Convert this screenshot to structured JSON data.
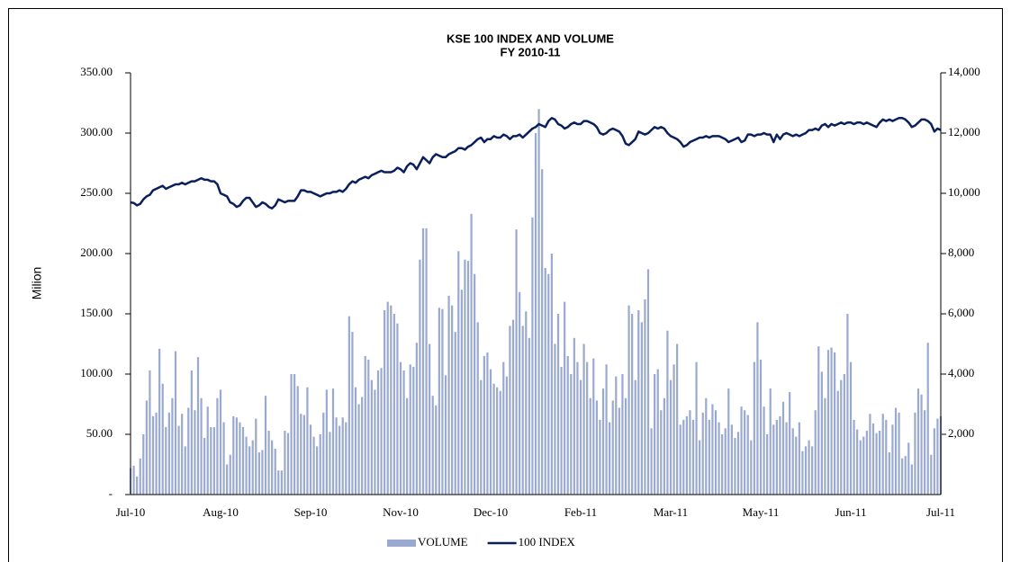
{
  "chart_data": {
    "type": "combo",
    "title": "KSE 100 INDEX AND VOLUME",
    "subtitle": "FY 2010-11",
    "y_label": "Milion",
    "categories": [
      "Jul-10",
      null,
      null,
      null,
      null,
      null,
      null,
      null,
      null,
      null,
      null,
      null,
      null,
      null,
      null,
      null,
      null,
      null,
      null,
      null,
      null,
      null,
      null,
      null,
      null,
      null,
      null,
      null,
      "Aug-10",
      null,
      null,
      null,
      null,
      null,
      null,
      null,
      null,
      null,
      null,
      null,
      null,
      null,
      null,
      null,
      null,
      null,
      null,
      null,
      null,
      null,
      null,
      null,
      null,
      null,
      null,
      null,
      "Sep-10",
      null,
      null,
      null,
      null,
      null,
      null,
      null,
      null,
      null,
      null,
      null,
      null,
      null,
      null,
      null,
      null,
      null,
      null,
      null,
      null,
      null,
      null,
      null,
      null,
      null,
      null,
      null,
      "Nov-10",
      null,
      null,
      null,
      null,
      null,
      null,
      null,
      null,
      null,
      null,
      null,
      null,
      null,
      null,
      null,
      null,
      null,
      null,
      null,
      null,
      null,
      null,
      null,
      null,
      null,
      null,
      null,
      "Dec-10",
      null,
      null,
      null,
      null,
      null,
      null,
      null,
      null,
      null,
      null,
      null,
      null,
      null,
      null,
      null,
      null,
      null,
      null,
      null,
      null,
      null,
      null,
      null,
      null,
      null,
      null,
      null,
      "Feb-11",
      null,
      null,
      null,
      null,
      null,
      null,
      null,
      null,
      null,
      null,
      null,
      null,
      null,
      null,
      null,
      null,
      null,
      null,
      null,
      null,
      null,
      null,
      null,
      null,
      null,
      null,
      null,
      "Mar-11",
      null,
      null,
      null,
      null,
      null,
      null,
      null,
      null,
      null,
      null,
      null,
      null,
      null,
      null,
      null,
      null,
      null,
      null,
      null,
      null,
      null,
      null,
      null,
      null,
      null,
      null,
      null,
      "May-11",
      null,
      null,
      null,
      null,
      null,
      null,
      null,
      null,
      null,
      null,
      null,
      null,
      null,
      null,
      null,
      null,
      null,
      null,
      null,
      null,
      null,
      null,
      null,
      null,
      null,
      null,
      null,
      "Jun-11",
      null,
      null,
      null,
      null,
      null,
      null,
      null,
      null,
      null,
      null,
      null,
      null,
      null,
      null,
      null,
      null,
      null,
      null,
      null,
      null,
      null,
      null,
      null,
      null,
      null,
      null,
      null,
      "Jul-11"
    ],
    "series": [
      {
        "name": "VOLUME",
        "type": "bar",
        "color": "#9aa9cf",
        "values": [
          22,
          24,
          15,
          30,
          50,
          78,
          103,
          65,
          68,
          121,
          92,
          56,
          68,
          80,
          119,
          57,
          67,
          40,
          72,
          103,
          70,
          114,
          80,
          47,
          73,
          56,
          56,
          80,
          87,
          60,
          25,
          33,
          65,
          64,
          60,
          56,
          48,
          40,
          45,
          63,
          35,
          37,
          82,
          53,
          45,
          38,
          20,
          20,
          53,
          51,
          100,
          100,
          90,
          67,
          66,
          89,
          58,
          48,
          40,
          50,
          68,
          87,
          52,
          88,
          64,
          57,
          64,
          60,
          148,
          135,
          89,
          75,
          81,
          115,
          112,
          95,
          87,
          103,
          105,
          153,
          160,
          157,
          150,
          142,
          110,
          103,
          80,
          108,
          106,
          126,
          195,
          221,
          221,
          125,
          82,
          74,
          155,
          154,
          99,
          165,
          157,
          135,
          202,
          170,
          195,
          194,
          233,
          183,
          143,
          95,
          115,
          118,
          104,
          92,
          89,
          86,
          110,
          98,
          140,
          145,
          220,
          168,
          140,
          152,
          130,
          230,
          300,
          320,
          270,
          188,
          183,
          200,
          125,
          150,
          106,
          160,
          115,
          100,
          130,
          110,
          95,
          125,
          110,
          80,
          113,
          78,
          62,
          88,
          108,
          60,
          78,
          98,
          72,
          100,
          80,
          157,
          150,
          95,
          153,
          143,
          162,
          187,
          55,
          100,
          104,
          70,
          80,
          136,
          95,
          108,
          125,
          58,
          62,
          65,
          70,
          62,
          110,
          45,
          68,
          80,
          62,
          75,
          70,
          60,
          50,
          55,
          88,
          58,
          47,
          52,
          73,
          70,
          66,
          45,
          110,
          143,
          112,
          73,
          50,
          88,
          58,
          62,
          65,
          77,
          60,
          85,
          55,
          48,
          60,
          36,
          40,
          45,
          40,
          70,
          123,
          102,
          80,
          120,
          122,
          118,
          86,
          95,
          100,
          150,
          110,
          62,
          54,
          45,
          48,
          53,
          67,
          59,
          51,
          53,
          67,
          62,
          35,
          58,
          72,
          68,
          30,
          32,
          43,
          25,
          68,
          88,
          83,
          70,
          126,
          33,
          55,
          63,
          65
        ]
      },
      {
        "name": "100 INDEX",
        "type": "line",
        "axis": "y2",
        "color": "#0a1f5c",
        "values": [
          9700,
          9680,
          9600,
          9650,
          9800,
          9900,
          9950,
          10100,
          10150,
          10200,
          10250,
          10150,
          10200,
          10250,
          10300,
          10300,
          10350,
          10300,
          10350,
          10400,
          10400,
          10450,
          10500,
          10450,
          10450,
          10400,
          10400,
          10300,
          10000,
          9950,
          9900,
          9700,
          9650,
          9550,
          9600,
          9750,
          9850,
          9850,
          9700,
          9550,
          9600,
          9700,
          9650,
          9550,
          9500,
          9600,
          9800,
          9750,
          9700,
          9750,
          9750,
          9750,
          9900,
          10100,
          10100,
          10050,
          10050,
          10000,
          9950,
          9900,
          9950,
          10000,
          10000,
          10050,
          10050,
          10100,
          10050,
          10150,
          10300,
          10400,
          10350,
          10450,
          10500,
          10550,
          10500,
          10600,
          10650,
          10700,
          10750,
          10700,
          10700,
          10700,
          10750,
          10850,
          10800,
          10700,
          10900,
          11000,
          10950,
          10800,
          11000,
          11200,
          11100,
          11000,
          11200,
          11300,
          11250,
          11200,
          11200,
          11300,
          11350,
          11400,
          11500,
          11500,
          11450,
          11550,
          11600,
          11700,
          11800,
          11850,
          11700,
          11800,
          11800,
          11900,
          11850,
          11850,
          11950,
          11900,
          11800,
          11900,
          11900,
          11950,
          11850,
          11950,
          12050,
          12150,
          12200,
          12300,
          12250,
          12200,
          12400,
          12500,
          12450,
          12300,
          12250,
          12150,
          12200,
          12300,
          12350,
          12300,
          12300,
          12400,
          12400,
          12350,
          12300,
          12200,
          12000,
          11950,
          12000,
          12100,
          12150,
          12100,
          12050,
          11900,
          11650,
          11600,
          11700,
          11800,
          12050,
          12000,
          11950,
          12000,
          12100,
          12200,
          12150,
          12200,
          12150,
          12000,
          11900,
          11850,
          11800,
          11700,
          11550,
          11600,
          11700,
          11750,
          11800,
          11850,
          11850,
          11900,
          11850,
          11900,
          11900,
          11900,
          11850,
          11800,
          11700,
          11750,
          11800,
          11850,
          11700,
          11750,
          11950,
          11950,
          11900,
          11950,
          11950,
          12000,
          11950,
          11950,
          11700,
          11950,
          11800,
          11950,
          12000,
          11950,
          11900,
          11950,
          11900,
          11950,
          12000,
          12100,
          12100,
          12150,
          12100,
          12250,
          12300,
          12200,
          12300,
          12250,
          12300,
          12350,
          12300,
          12350,
          12350,
          12300,
          12350,
          12350,
          12300,
          12350,
          12300,
          12250,
          12200,
          12350,
          12450,
          12400,
          12450,
          12400,
          12450,
          12500,
          12500,
          12450,
          12350,
          12200,
          12250,
          12350,
          12450,
          12450,
          12400,
          12300,
          12050,
          12150,
          12100
        ]
      }
    ],
    "ylim": [
      0,
      350
    ],
    "yticks": [
      {
        "value": 0,
        "label": "-"
      },
      {
        "value": 50,
        "label": "50.00"
      },
      {
        "value": 100,
        "label": "100.00"
      },
      {
        "value": 150,
        "label": "150.00"
      },
      {
        "value": 200,
        "label": "200.00"
      },
      {
        "value": 250,
        "label": "250.00"
      },
      {
        "value": 300,
        "label": "300.00"
      },
      {
        "value": 350,
        "label": "350.00"
      }
    ],
    "y2lim": [
      0,
      14000
    ],
    "y2ticks": [
      {
        "value": 2000,
        "label": "2,000"
      },
      {
        "value": 4000,
        "label": "4,000"
      },
      {
        "value": 6000,
        "label": "6,000"
      },
      {
        "value": 8000,
        "label": "8,000"
      },
      {
        "value": 10000,
        "label": "10,000"
      },
      {
        "value": 12000,
        "label": "12,000"
      },
      {
        "value": 14000,
        "label": "14,000"
      }
    ],
    "legend": "bottom",
    "grid": false
  }
}
